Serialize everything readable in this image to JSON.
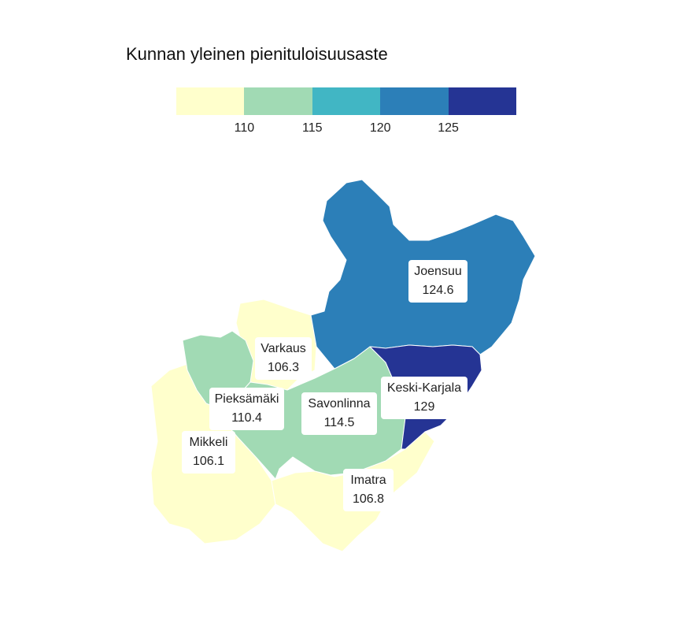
{
  "title": "Kunnan yleinen pienituloisuusaste",
  "legend": {
    "colors": [
      "#ffffcc",
      "#a1dab4",
      "#41b6c4",
      "#2c7fb8",
      "#253494"
    ],
    "ticks": [
      "110",
      "115",
      "120",
      "125"
    ]
  },
  "regions": [
    {
      "name": "Joensuu",
      "value": "124.6",
      "color": "#2c7fb8"
    },
    {
      "name": "Keski-Karjala",
      "value": "129",
      "color": "#253494"
    },
    {
      "name": "Varkaus",
      "value": "106.3",
      "color": "#ffffcc"
    },
    {
      "name": "Pieksämäki",
      "value": "110.4",
      "color": "#a1dab4"
    },
    {
      "name": "Savonlinna",
      "value": "114.5",
      "color": "#a1dab4"
    },
    {
      "name": "Mikkeli",
      "value": "106.1",
      "color": "#ffffcc"
    },
    {
      "name": "Imatra",
      "value": "106.8",
      "color": "#ffffcc"
    }
  ]
}
